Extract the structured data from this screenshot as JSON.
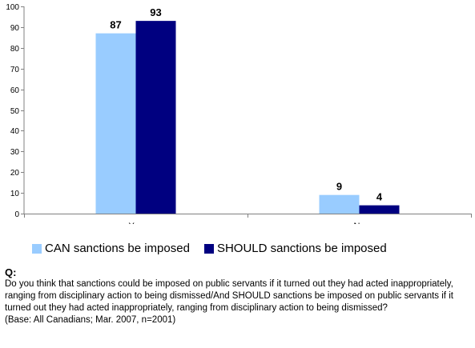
{
  "chart_data": {
    "type": "bar",
    "categories": [
      "Yes",
      "No"
    ],
    "series": [
      {
        "name": "CAN sanctions be imposed",
        "values": [
          87,
          9
        ],
        "color": "#99ccff"
      },
      {
        "name": "SHOULD sanctions be imposed",
        "values": [
          93,
          4
        ],
        "color": "#000080"
      }
    ],
    "data_labels": [
      [
        "87",
        "9"
      ],
      [
        "93",
        "4"
      ]
    ],
    "title": "",
    "xlabel": "",
    "ylabel": "",
    "ylim": [
      0,
      100
    ],
    "yticks": [
      0,
      10,
      20,
      30,
      40,
      50,
      60,
      70,
      80,
      90,
      100
    ],
    "ytick_labels": [
      "0",
      "10",
      "20",
      "30",
      "40",
      "50",
      "60",
      "70",
      "80",
      "90",
      "100"
    ],
    "grid": false,
    "legend": "bottom"
  },
  "legend": {
    "items": [
      {
        "label": "CAN sanctions be imposed",
        "color": "#99ccff"
      },
      {
        "label": "SHOULD sanctions be imposed",
        "color": "#000080"
      }
    ]
  },
  "notes": {
    "q_label": "Q:",
    "question": "Do you think that sanctions could be imposed on public servants if it turned out they had acted inappropriately, ranging from disciplinary action to being dismissed/And SHOULD sanctions be imposed on public servants if it turned out they had acted inappropriately, ranging from disciplinary action to being dismissed?",
    "base": "(Base: All Canadians; Mar. 2007, n=2001)"
  }
}
